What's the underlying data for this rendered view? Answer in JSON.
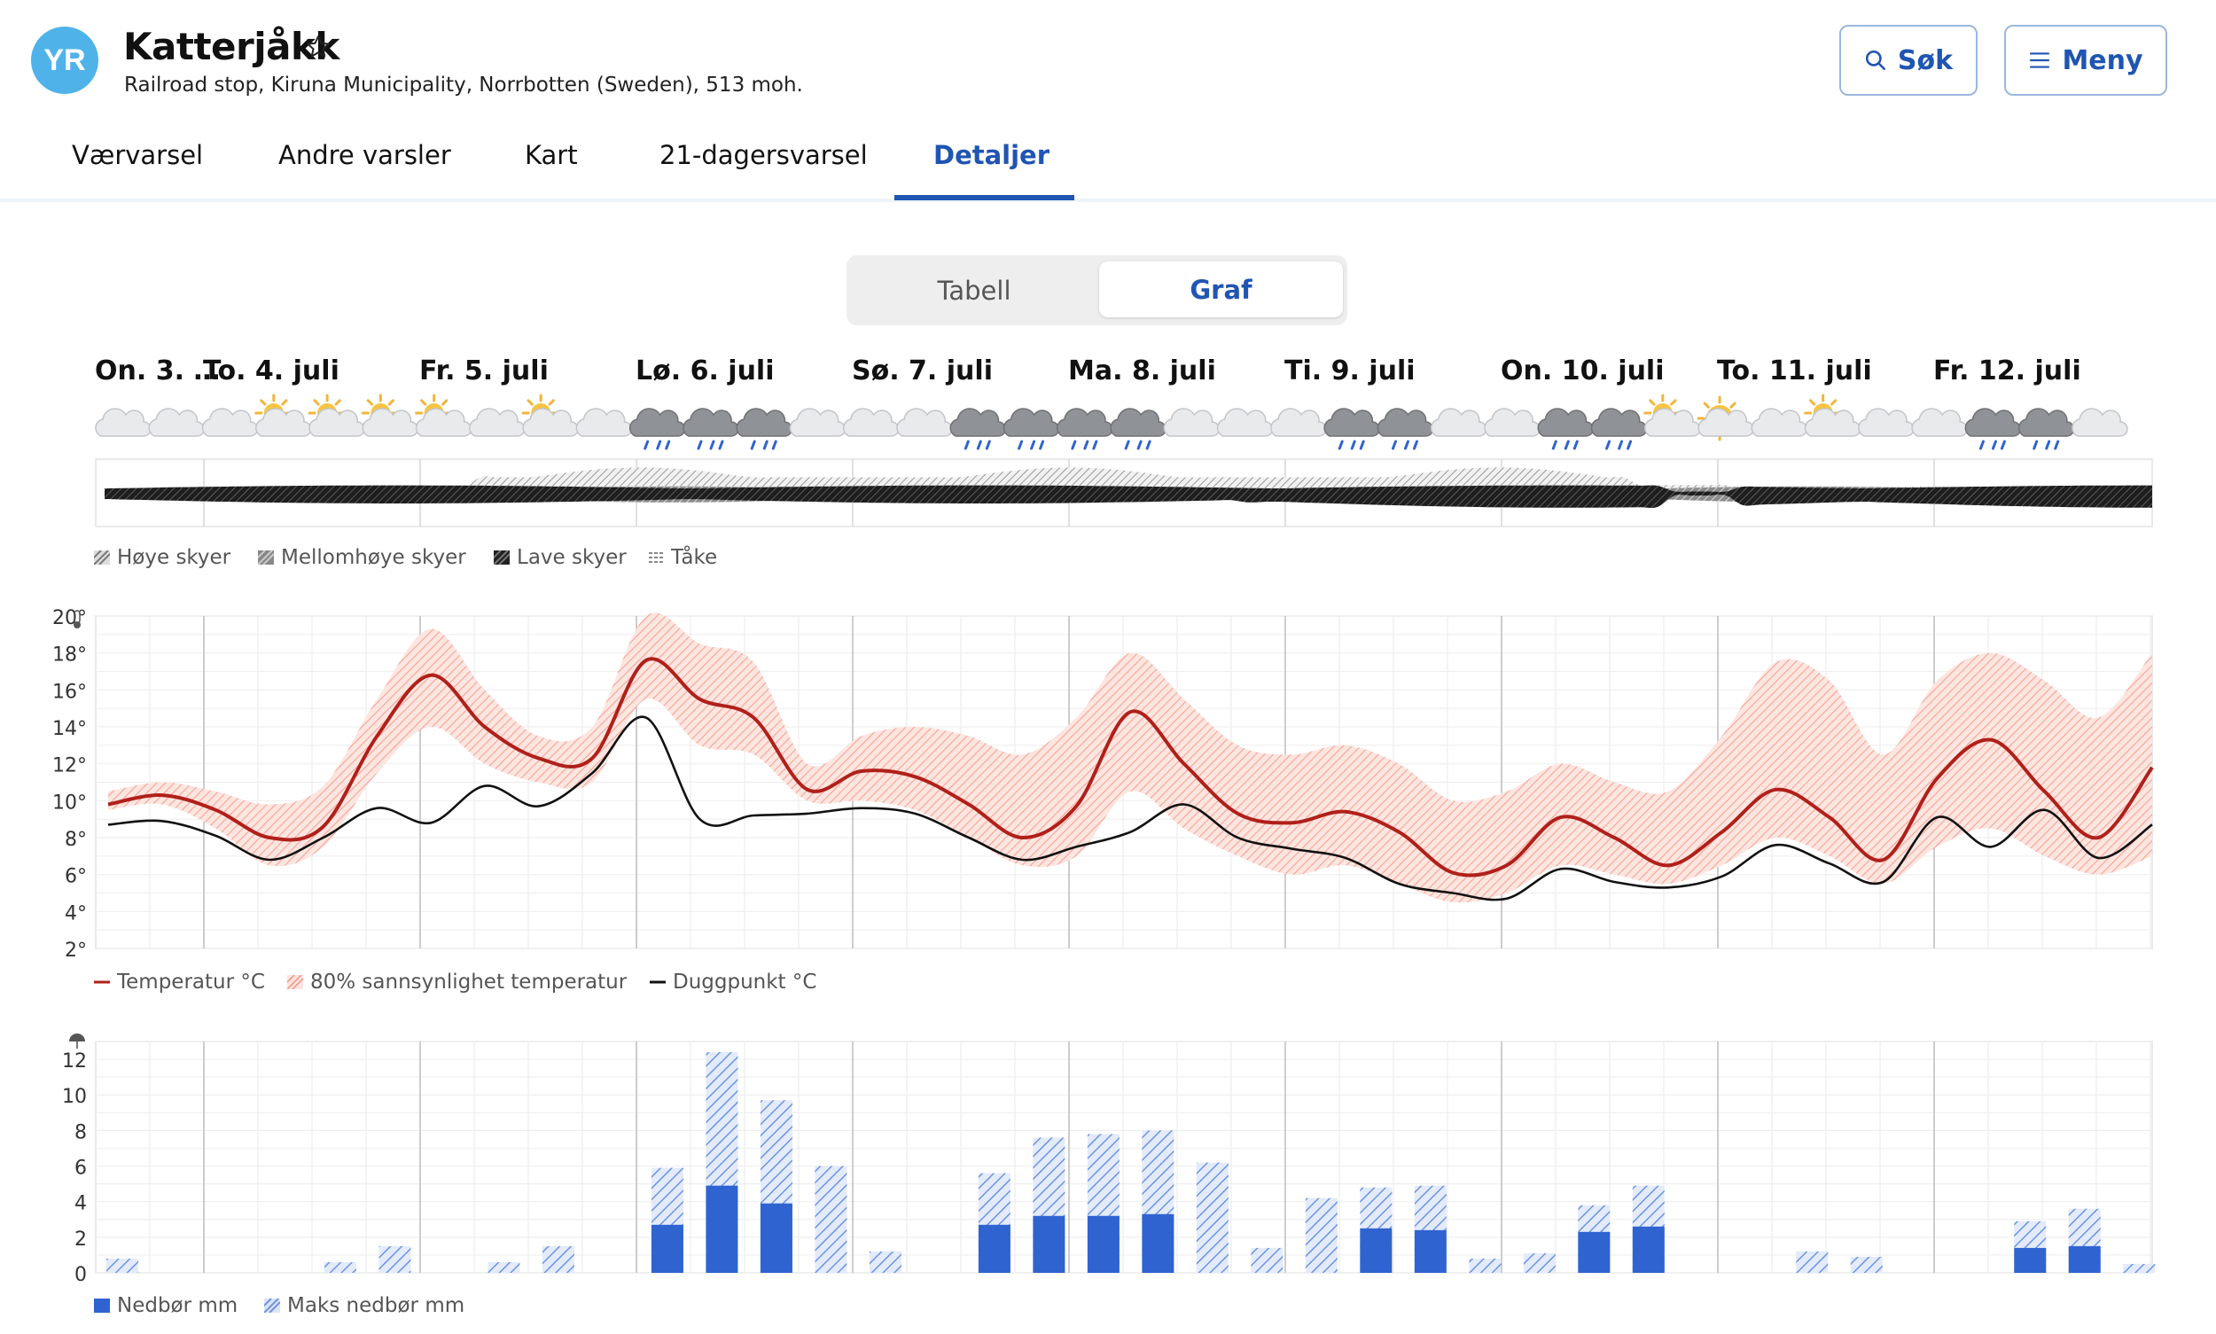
{
  "header": {
    "title": "Katterjåkk",
    "subtitle": "Railroad stop, Kiruna Municipality, Norrbotten (Sweden), 513 moh.",
    "logo_text": "YR",
    "search_label": "Søk",
    "menu_label": "Meny"
  },
  "nav": {
    "tabs": [
      "Værvarsel",
      "Andre varsler",
      "Kart",
      "21-dagersvarsel",
      "Detaljer"
    ],
    "active": "Detaljer"
  },
  "view_toggle": {
    "tabell": "Tabell",
    "graf": "Graf",
    "selected": "Graf"
  },
  "days": [
    "On. 3. …",
    "To. 4. juli",
    "Fr. 5. juli",
    "Lø. 6. juli",
    "Sø. 7. juli",
    "Ma. 8. juli",
    "Ti. 9. juli",
    "On. 10. juli",
    "To. 11. juli",
    "Fr. 12. juli"
  ],
  "weather_icons": [
    "cloud",
    "cloud",
    "cloud",
    "partly-cloudy",
    "partly-cloudy",
    "partly-cloudy",
    "partly-cloudy",
    "cloud",
    "partly-cloudy",
    "cloud",
    "rain",
    "rain",
    "rain",
    "cloud",
    "cloud",
    "cloud",
    "rain",
    "rain",
    "rain",
    "rain",
    "cloud",
    "cloud",
    "cloud",
    "rain",
    "rain",
    "cloud",
    "cloud",
    "rain",
    "rain",
    "partly-cloudy",
    "sun-cloud",
    "cloud",
    "partly-cloudy",
    "cloud",
    "cloud",
    "rain",
    "rain",
    "cloud"
  ],
  "cloud_legend": [
    "Høye skyer",
    "Mellomhøye skyer",
    "Lave skyer",
    "Tåke"
  ],
  "colors": {
    "accent": "#1f55b3",
    "temperature": "#b0201a",
    "temp_band": "#f4b7ae",
    "dewpoint": "#111111",
    "precip": "#2f63d0",
    "precip_max": "#8aa7e6"
  },
  "temp_legend": [
    "Temperatur °C",
    "80% sannsynlighet temperatur",
    "Duggpunkt °C"
  ],
  "precip_legend": [
    "Nedbør mm",
    "Maks nedbør mm"
  ],
  "chart_data": [
    {
      "type": "line",
      "y_unit": "°",
      "ylim": [
        2,
        20
      ],
      "yticks": [
        2,
        4,
        6,
        8,
        10,
        12,
        14,
        16,
        18,
        20
      ],
      "x_unit": "hours from start",
      "xlim": [
        0,
        228
      ],
      "series": [
        {
          "name": "Temperatur °C",
          "x": [
            0,
            6,
            12,
            18,
            24,
            30,
            36,
            42,
            48,
            54,
            60,
            66,
            72,
            78,
            84,
            90,
            96,
            102,
            108,
            114,
            120,
            126,
            132,
            138,
            144,
            150,
            156,
            162,
            168,
            174,
            180,
            186,
            192,
            198,
            204,
            210,
            216,
            222,
            228
          ],
          "values": [
            9.8,
            10.3,
            9.5,
            8.0,
            8.6,
            13.5,
            16.8,
            14.0,
            12.3,
            12.3,
            17.6,
            15.5,
            14.5,
            10.6,
            11.6,
            11.3,
            9.8,
            8.0,
            9.7,
            14.8,
            12.0,
            9.3,
            8.8,
            9.4,
            8.3,
            6.1,
            6.5,
            9.1,
            8.0,
            6.5,
            8.3,
            10.6,
            9.1,
            6.8,
            11.2,
            13.3,
            10.5,
            8.0,
            11.8
          ]
        },
        {
          "name": "80% sannsynlighet temperatur",
          "range": true,
          "upper": [
            10.5,
            11.0,
            10.5,
            9.8,
            10.8,
            15.5,
            19.3,
            16.0,
            13.5,
            14.0,
            20.0,
            18.5,
            17.5,
            12.0,
            13.5,
            14.0,
            13.5,
            12.5,
            14.5,
            18.0,
            15.5,
            13.0,
            12.5,
            13.0,
            12.0,
            10.0,
            10.5,
            12.0,
            11.0,
            10.5,
            13.5,
            17.5,
            16.5,
            12.5,
            16.5,
            18.0,
            16.5,
            14.5,
            18.0
          ],
          "lower": [
            9.5,
            9.8,
            8.5,
            6.5,
            7.5,
            11.5,
            14.0,
            12.0,
            11.0,
            11.0,
            15.5,
            13.0,
            12.5,
            10.0,
            10.0,
            9.5,
            8.0,
            6.5,
            7.0,
            10.5,
            8.5,
            7.0,
            6.0,
            6.5,
            5.5,
            4.5,
            5.0,
            6.5,
            6.0,
            5.5,
            6.5,
            8.0,
            7.0,
            5.5,
            7.5,
            8.5,
            7.0,
            6.0,
            7.0
          ]
        },
        {
          "name": "Duggpunkt °C",
          "x": [
            0,
            6,
            12,
            18,
            24,
            30,
            36,
            42,
            48,
            54,
            60,
            66,
            72,
            78,
            84,
            90,
            96,
            102,
            108,
            114,
            120,
            126,
            132,
            138,
            144,
            150,
            156,
            162,
            168,
            174,
            180,
            186,
            192,
            198,
            204,
            210,
            216,
            222,
            228
          ],
          "values": [
            8.7,
            8.9,
            8.1,
            6.8,
            8.0,
            9.6,
            8.8,
            10.8,
            9.7,
            11.5,
            14.5,
            9.0,
            9.2,
            9.3,
            9.6,
            9.3,
            8.0,
            6.8,
            7.5,
            8.3,
            9.8,
            8.0,
            7.4,
            6.9,
            5.5,
            5.0,
            4.7,
            6.3,
            5.6,
            5.3,
            5.9,
            7.6,
            6.6,
            5.6,
            9.1,
            7.5,
            9.5,
            6.9,
            8.7
          ]
        }
      ]
    },
    {
      "type": "bar",
      "y_unit": "mm",
      "ylim": [
        0,
        13
      ],
      "yticks": [
        0,
        2,
        4,
        6,
        8,
        10,
        12
      ],
      "x_unit": "6-hour periods",
      "series": [
        {
          "name": "Nedbør mm",
          "values": [
            0,
            0,
            0,
            0,
            0,
            0,
            0,
            0,
            0,
            0,
            2.7,
            4.9,
            3.9,
            0,
            0,
            0,
            2.7,
            3.2,
            3.2,
            3.3,
            0,
            0,
            0,
            2.5,
            2.4,
            0,
            0,
            2.3,
            2.6,
            0,
            0,
            0,
            0,
            0,
            0,
            1.4,
            1.5,
            0
          ]
        },
        {
          "name": "Maks nedbør mm",
          "values": [
            0.8,
            0,
            0,
            0,
            0.6,
            1.5,
            0,
            0.6,
            1.5,
            0,
            5.9,
            12.4,
            9.7,
            6.0,
            1.2,
            0,
            5.6,
            7.6,
            7.8,
            8.0,
            6.2,
            1.4,
            4.2,
            4.8,
            4.9,
            0.8,
            1.1,
            3.8,
            4.9,
            0,
            0,
            1.2,
            0.9,
            0,
            0,
            2.9,
            3.6,
            0.5
          ]
        }
      ]
    }
  ]
}
